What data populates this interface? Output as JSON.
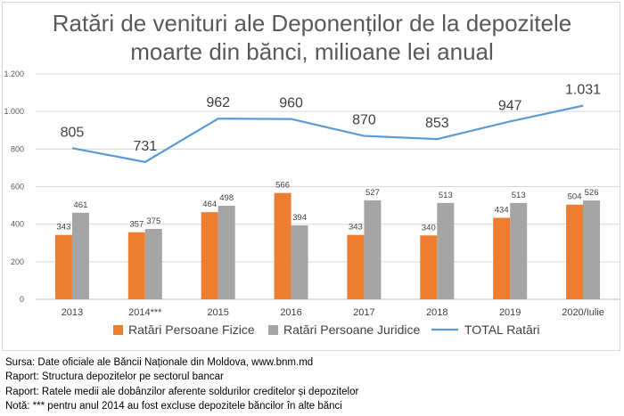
{
  "colors": {
    "fizice": "#ED7D31",
    "juridice": "#A5A5A5",
    "total": "#5B9BD5",
    "grid": "#d9d9d9",
    "axis": "#bfbfbf"
  },
  "chart_data": {
    "type": "bar",
    "title": "Ratări de venituri ale Deponenților de la depozitele moarte din bănci, milioane lei anual",
    "title_lines": [
      "Ratări de venituri ale Deponenților de la depozitele",
      "moarte din bănci, milioane lei anual"
    ],
    "categories": [
      "2013",
      "2014***",
      "2015",
      "2016",
      "2017",
      "2018",
      "2019",
      "2020/Iulie"
    ],
    "series": [
      {
        "name": "Ratări Persoane Fizice",
        "kind": "bar",
        "values": [
          343,
          357,
          464,
          566,
          343,
          340,
          434,
          504
        ]
      },
      {
        "name": "Ratări Persoane Juridice",
        "kind": "bar",
        "values": [
          461,
          375,
          498,
          394,
          527,
          513,
          513,
          526
        ]
      },
      {
        "name": "TOTAL Ratări",
        "kind": "line",
        "values": [
          805,
          731,
          962,
          960,
          870,
          853,
          947,
          1031
        ]
      }
    ],
    "total_labels": [
      "805",
      "731",
      "962",
      "960",
      "870",
      "853",
      "947",
      "1.031"
    ],
    "y_ticks": [
      0,
      200,
      400,
      600,
      800,
      1000,
      1200
    ],
    "y_tick_labels": [
      "0",
      "200",
      "400",
      "600",
      "800",
      "1.000",
      "1.200"
    ],
    "ylim": [
      0,
      1200
    ],
    "xlabel": "",
    "ylabel": "",
    "grid": true,
    "legend_position": "bottom"
  },
  "notes": [
    "Sursa: Date oficiale ale Băncii Naționale din Moldova, www.bnm.md",
    "Raport: Structura depozitelor pe sectorul bancar",
    "Raport: Ratele medii ale dobânzilor aferente soldurilor creditelor și depozitelor",
    "Notă: *** pentru anul 2014 au fost excluse depozitele băncilor în alte bănci"
  ]
}
